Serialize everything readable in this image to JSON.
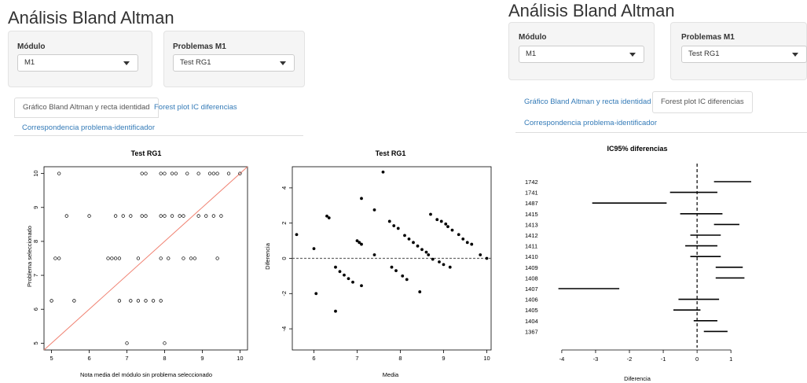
{
  "left_panel": {
    "title": "Análisis Bland Altman",
    "modulo_label": "Módulo",
    "modulo_value": "M1",
    "problemas_label": "Problemas M1",
    "problemas_value": "Test RG1",
    "tabs": [
      {
        "label": "Gráfico Bland Altman y recta identidad",
        "active": true
      },
      {
        "label": "Forest plot IC diferencias",
        "active": false
      },
      {
        "label": "Correspondencia problema-identificador",
        "active": false
      }
    ]
  },
  "right_panel": {
    "title": "Análisis Bland Altman",
    "modulo_label": "Módulo",
    "modulo_value": "M1",
    "problemas_label": "Problemas M1",
    "problemas_value": "Test RG1",
    "tabs": [
      {
        "label": "Gráfico Bland Altman y recta identidad",
        "active": false
      },
      {
        "label": "Forest plot IC diferencias",
        "active": true
      },
      {
        "label": "Correspondencia problema-identificador",
        "active": false
      }
    ]
  },
  "chart_data": [
    {
      "type": "scatter",
      "title": "Test RG1",
      "xlabel": "Nota media del módulo sin problema seleccionado",
      "ylabel": "Problema seleccionado",
      "xlim": [
        4.8,
        10.2
      ],
      "ylim": [
        4.8,
        10.2
      ],
      "xticks": [
        5,
        6,
        7,
        8,
        9,
        10
      ],
      "yticks": [
        5,
        6,
        7,
        8,
        9,
        10
      ],
      "identity_line": true,
      "identity_color": "#f08070",
      "points": [
        [
          5.2,
          10
        ],
        [
          7.4,
          10
        ],
        [
          7.5,
          10
        ],
        [
          7.9,
          10
        ],
        [
          8.0,
          10
        ],
        [
          8.2,
          10
        ],
        [
          8.3,
          10
        ],
        [
          8.6,
          10
        ],
        [
          8.9,
          10
        ],
        [
          9.2,
          10
        ],
        [
          9.3,
          10
        ],
        [
          9.4,
          10
        ],
        [
          9.7,
          10
        ],
        [
          10.0,
          10
        ],
        [
          5.4,
          8.75
        ],
        [
          6.0,
          8.75
        ],
        [
          6.7,
          8.75
        ],
        [
          6.9,
          8.75
        ],
        [
          7.1,
          8.75
        ],
        [
          7.4,
          8.75
        ],
        [
          7.5,
          8.75
        ],
        [
          7.9,
          8.75
        ],
        [
          8.0,
          8.75
        ],
        [
          8.2,
          8.75
        ],
        [
          8.4,
          8.75
        ],
        [
          8.5,
          8.75
        ],
        [
          8.9,
          8.75
        ],
        [
          9.1,
          8.75
        ],
        [
          9.3,
          8.75
        ],
        [
          9.5,
          8.75
        ],
        [
          5.1,
          7.5
        ],
        [
          5.2,
          7.5
        ],
        [
          6.5,
          7.5
        ],
        [
          6.6,
          7.5
        ],
        [
          6.7,
          7.5
        ],
        [
          6.8,
          7.5
        ],
        [
          7.3,
          7.5
        ],
        [
          7.9,
          7.5
        ],
        [
          8.1,
          7.5
        ],
        [
          8.5,
          7.5
        ],
        [
          8.7,
          7.5
        ],
        [
          8.8,
          7.5
        ],
        [
          9.4,
          7.5
        ],
        [
          5.0,
          6.25
        ],
        [
          5.6,
          6.25
        ],
        [
          6.8,
          6.25
        ],
        [
          7.1,
          6.25
        ],
        [
          7.3,
          6.25
        ],
        [
          7.5,
          6.25
        ],
        [
          7.7,
          6.25
        ],
        [
          7.9,
          6.25
        ],
        [
          7.0,
          5.0
        ],
        [
          8.0,
          5.0
        ]
      ]
    },
    {
      "type": "scatter",
      "title": "Test RG1",
      "xlabel": "Media",
      "ylabel": "Diferencia",
      "xlim": [
        5.5,
        10.1
      ],
      "ylim": [
        -5.2,
        5.2
      ],
      "xticks": [
        6,
        7,
        8,
        9,
        10
      ],
      "yticks": [
        -4,
        -2,
        0,
        2,
        4
      ],
      "zero_line": true,
      "points": [
        [
          5.6,
          1.35
        ],
        [
          6.0,
          0.55
        ],
        [
          6.05,
          -2.0
        ],
        [
          6.3,
          2.4
        ],
        [
          6.35,
          2.3
        ],
        [
          6.5,
          -0.5
        ],
        [
          6.5,
          -3.0
        ],
        [
          6.6,
          -0.75
        ],
        [
          6.7,
          -0.95
        ],
        [
          6.8,
          -1.15
        ],
        [
          6.9,
          -1.35
        ],
        [
          7.0,
          1.0
        ],
        [
          7.05,
          0.9
        ],
        [
          7.1,
          0.8
        ],
        [
          7.1,
          -1.55
        ],
        [
          7.1,
          3.4
        ],
        [
          7.4,
          2.75
        ],
        [
          7.4,
          0.2
        ],
        [
          7.6,
          4.9
        ],
        [
          7.75,
          2.1
        ],
        [
          7.8,
          -0.5
        ],
        [
          7.85,
          1.85
        ],
        [
          7.9,
          -0.7
        ],
        [
          7.95,
          1.7
        ],
        [
          8.05,
          -1.0
        ],
        [
          8.1,
          1.3
        ],
        [
          8.15,
          -1.2
        ],
        [
          8.2,
          1.1
        ],
        [
          8.3,
          0.9
        ],
        [
          8.4,
          0.7
        ],
        [
          8.45,
          -1.9
        ],
        [
          8.5,
          0.5
        ],
        [
          8.6,
          0.35
        ],
        [
          8.65,
          0.2
        ],
        [
          8.7,
          2.5
        ],
        [
          8.75,
          -0.05
        ],
        [
          8.85,
          2.2
        ],
        [
          8.9,
          -0.2
        ],
        [
          8.95,
          2.1
        ],
        [
          9.0,
          -0.35
        ],
        [
          9.05,
          1.95
        ],
        [
          9.1,
          1.8
        ],
        [
          9.15,
          -0.5
        ],
        [
          9.2,
          1.6
        ],
        [
          9.35,
          1.35
        ],
        [
          9.45,
          1.1
        ],
        [
          9.55,
          0.9
        ],
        [
          9.65,
          0.8
        ],
        [
          9.85,
          0.2
        ],
        [
          10.0,
          0.0
        ]
      ]
    },
    {
      "type": "forest",
      "title": "IC95% diferencias",
      "xlabel": "Diferencia",
      "xlim": [
        -4.3,
        1.6
      ],
      "xticks": [
        -4,
        -3,
        -2,
        -1,
        0,
        1
      ],
      "zero_line": true,
      "rows": [
        {
          "label": "1742",
          "low": 0.5,
          "high": 1.6
        },
        {
          "label": "1741",
          "low": -0.8,
          "high": 0.6
        },
        {
          "label": "1487",
          "low": -3.1,
          "high": -0.9
        },
        {
          "label": "1415",
          "low": -0.5,
          "high": 0.75
        },
        {
          "label": "1413",
          "low": 0.5,
          "high": 1.25
        },
        {
          "label": "1412",
          "low": -0.2,
          "high": 0.7
        },
        {
          "label": "1411",
          "low": -0.35,
          "high": 0.6
        },
        {
          "label": "1410",
          "low": -0.2,
          "high": 0.7
        },
        {
          "label": "1409",
          "low": 0.55,
          "high": 1.35
        },
        {
          "label": "1408",
          "low": 0.55,
          "high": 1.4
        },
        {
          "label": "1407",
          "low": -4.1,
          "high": -2.3
        },
        {
          "label": "1406",
          "low": -0.55,
          "high": 0.65
        },
        {
          "label": "1405",
          "low": -0.7,
          "high": 0.1
        },
        {
          "label": "1404",
          "low": -0.1,
          "high": 0.6
        },
        {
          "label": "1367",
          "low": 0.2,
          "high": 0.9
        }
      ]
    }
  ]
}
